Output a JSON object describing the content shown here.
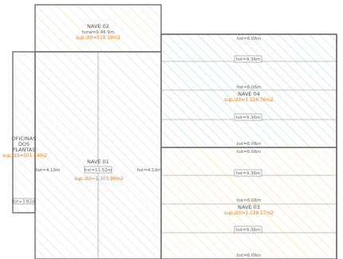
{
  "plan": {
    "nave02": {
      "name": "NAVE 02",
      "height": "hstw=9,46 9m",
      "area": "sup.útil=518.19m2",
      "hatch_color": "#e8d9a8"
    },
    "nave01": {
      "name": "NAVE 01",
      "box_label": "hst=11.52m",
      "height_left": "hst=4.19m",
      "height_right": "hst=4.19m",
      "area": "sup.útil=1.303.96m2",
      "hatch_color": "#dcc8e6"
    },
    "oficinas": {
      "name_line1": "OFICINAS",
      "name_line2": "DOS",
      "name_line3": "PLANTAS",
      "area": "sup.útil=301.54m2",
      "box_label": "hst=3.82m",
      "hatch_color": "#bfe6e2"
    },
    "nave04": {
      "name": "NAVE 04",
      "area": "sup.útil=1.156.76m2",
      "top_label": "hst=6.06m",
      "box_label_1": "hst=9.36m",
      "mid_label": "hst=6.06m",
      "box_label_2": "hst=9.36m",
      "bottom_label": "hst=6.06m",
      "hatch_color": "#9ed9b5"
    },
    "nave03": {
      "name": "NAVE 03",
      "area": "sup.útil=1.138.17m2",
      "top_label": "hst=6.06m",
      "box_label_1": "hst=9.36m",
      "mid_label": "hst=6.06m",
      "box_label_2": "hst=9.36m",
      "bottom_label": "hst=6.06m",
      "hatch_color": "#f2d98a"
    },
    "line_color": "#6e6e6e",
    "accent_color": "#e07a1f"
  }
}
